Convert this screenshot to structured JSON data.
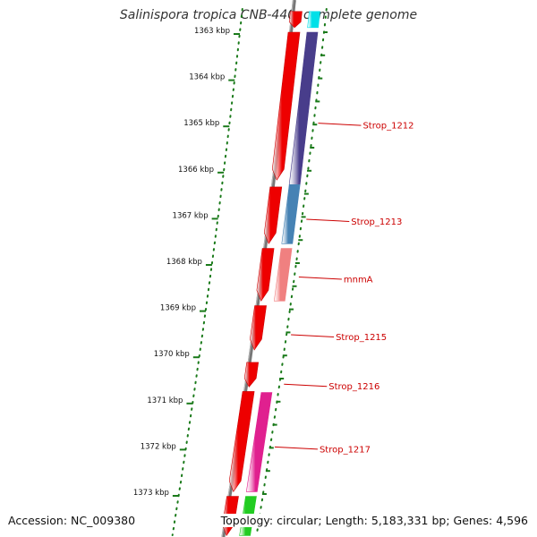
{
  "title": "Salinispora tropica CNB-440, complete genome",
  "footer": {
    "accession": "Accession: NC_009380",
    "summary": "Topology: circular; Length: 5,183,331 bp; Genes: 4,596"
  },
  "colors": {
    "backbone": "#777777",
    "tick": "#1a7a1a",
    "forward_gene": "#ee0000",
    "label": "#cc0000",
    "cyan_feature": "#00e0e8",
    "navy_feature": "#483d8b",
    "steelblue_feature": "#4682b4",
    "salmon_feature": "#f08080",
    "magenta_feature": "#e0208f",
    "green_feature": "#22cc22"
  },
  "ticks": [
    {
      "label": "1363 kbp",
      "kbp": 1363
    },
    {
      "label": "1364 kbp",
      "kbp": 1364
    },
    {
      "label": "1365 kbp",
      "kbp": 1365
    },
    {
      "label": "1366 kbp",
      "kbp": 1366
    },
    {
      "label": "1367 kbp",
      "kbp": 1367
    },
    {
      "label": "1368 kbp",
      "kbp": 1368
    },
    {
      "label": "1369 kbp",
      "kbp": 1369
    },
    {
      "label": "1370 kbp",
      "kbp": 1370
    },
    {
      "label": "1371 kbp",
      "kbp": 1371
    },
    {
      "label": "1372 kbp",
      "kbp": 1372
    },
    {
      "label": "1373 kbp",
      "kbp": 1373
    }
  ],
  "forward_genes": [
    {
      "start": 1362.55,
      "end": 1362.9
    },
    {
      "start": 1363.0,
      "end": 1366.2
    },
    {
      "start": 1366.35,
      "end": 1367.58
    },
    {
      "start": 1367.68,
      "end": 1368.82
    },
    {
      "start": 1368.92,
      "end": 1369.88
    },
    {
      "start": 1370.15,
      "end": 1370.68
    },
    {
      "start": 1370.78,
      "end": 1372.95
    },
    {
      "start": 1373.05,
      "end": 1373.9
    }
  ],
  "features": [
    {
      "start": 1362.55,
      "end": 1362.9,
      "color": "cyan"
    },
    {
      "start": 1363.0,
      "end": 1366.3,
      "color": "navy"
    },
    {
      "start": 1366.3,
      "end": 1367.58,
      "color": "steelblue"
    },
    {
      "start": 1367.68,
      "end": 1368.82,
      "color": "salmon"
    },
    {
      "start": 1370.8,
      "end": 1372.95,
      "color": "magenta"
    },
    {
      "start": 1373.05,
      "end": 1373.9,
      "color": "green"
    }
  ],
  "labels": [
    {
      "text": "Strop_1212",
      "kbp": 1364.97
    },
    {
      "text": "Strop_1213",
      "kbp": 1367.05
    },
    {
      "text": "mnmA",
      "kbp": 1368.3
    },
    {
      "text": "Strop_1215",
      "kbp": 1369.55
    },
    {
      "text": "Strop_1216",
      "kbp": 1370.62
    },
    {
      "text": "Strop_1217",
      "kbp": 1371.98
    }
  ]
}
